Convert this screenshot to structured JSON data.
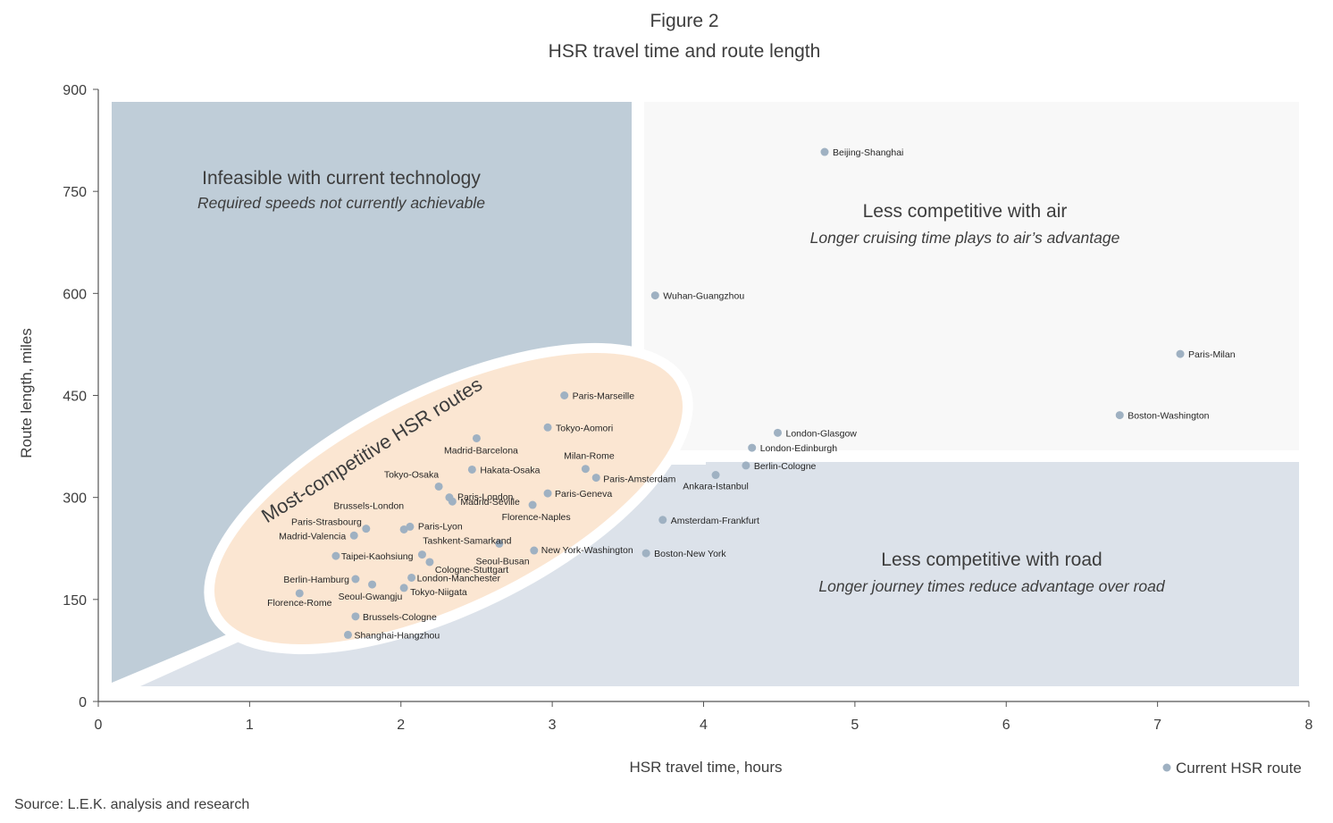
{
  "figure": {
    "title_line1": "Figure 2",
    "title_line2": "HSR travel time and route length",
    "source": "Source: L.E.K. analysis and research"
  },
  "zones": [
    {
      "id": "infeasible",
      "title": "Infeasible with current technology",
      "subtitle": "Required speeds not currently achievable"
    },
    {
      "id": "air",
      "title": "Less competitive with air",
      "subtitle": "Longer cruising time plays to air’s advantage"
    },
    {
      "id": "road",
      "title": "Less competitive with road",
      "subtitle": "Longer journey times reduce advantage over road"
    },
    {
      "id": "competitive",
      "title": "Most-competitive HSR routes",
      "subtitle": ""
    }
  ],
  "colors": {
    "infeasible": "#bfcdd8",
    "air": "#f8f8f8",
    "road": "#dce2ea",
    "competitive_fill": "#fbe6d2",
    "point": "#9fb1c2",
    "axis": "#555555"
  },
  "chart_data": {
    "type": "scatter",
    "title": "HSR travel time and route length",
    "xlabel": "HSR travel time, hours",
    "ylabel": "Route length, miles",
    "xlim": [
      0,
      8
    ],
    "ylim": [
      0,
      900
    ],
    "xticks": [
      0,
      1,
      2,
      3,
      4,
      5,
      6,
      7,
      8
    ],
    "yticks": [
      0,
      150,
      300,
      450,
      600,
      750,
      900
    ],
    "grid": false,
    "legend": {
      "position": "bottom-right",
      "entries": [
        "Current HSR route"
      ]
    },
    "series": [
      {
        "name": "Current HSR route",
        "points": [
          {
            "label": "Beijing-Shanghai",
            "x": 4.8,
            "y": 808
          },
          {
            "label": "Wuhan-Guangzhou",
            "x": 3.68,
            "y": 597
          },
          {
            "label": "Paris-Milan",
            "x": 7.15,
            "y": 511
          },
          {
            "label": "Boston-Washington",
            "x": 6.75,
            "y": 421
          },
          {
            "label": "Paris-Marseille",
            "x": 3.08,
            "y": 450
          },
          {
            "label": "Tokyo-Aomori",
            "x": 2.97,
            "y": 403
          },
          {
            "label": "Madrid-Barcelona",
            "x": 2.5,
            "y": 387
          },
          {
            "label": "London-Glasgow",
            "x": 4.49,
            "y": 395
          },
          {
            "label": "London-Edinburgh",
            "x": 4.32,
            "y": 373
          },
          {
            "label": "Berlin-Cologne",
            "x": 4.28,
            "y": 347
          },
          {
            "label": "Milan-Rome",
            "x": 3.22,
            "y": 342
          },
          {
            "label": "Hakata-Osaka",
            "x": 2.47,
            "y": 341
          },
          {
            "label": "Paris-Amsterdam",
            "x": 3.29,
            "y": 329
          },
          {
            "label": "Ankara-Istanbul",
            "x": 4.08,
            "y": 333
          },
          {
            "label": "Tokyo-Osaka",
            "x": 2.25,
            "y": 316
          },
          {
            "label": "Paris-London",
            "x": 2.32,
            "y": 300
          },
          {
            "label": "Madrid-Seville",
            "x": 2.34,
            "y": 294
          },
          {
            "label": "Paris-Geneva",
            "x": 2.97,
            "y": 306
          },
          {
            "label": "Florence-Naples",
            "x": 2.87,
            "y": 289
          },
          {
            "label": "Brussels-London",
            "x": 2.02,
            "y": 253
          },
          {
            "label": "Paris-Lyon",
            "x": 2.06,
            "y": 257
          },
          {
            "label": "Amsterdam-Frankfurt",
            "x": 3.73,
            "y": 267
          },
          {
            "label": "Paris-Strasbourg",
            "x": 1.77,
            "y": 254
          },
          {
            "label": "Madrid-Valencia",
            "x": 1.69,
            "y": 244
          },
          {
            "label": "Tashkent-Samarkand",
            "x": 2.65,
            "y": 232
          },
          {
            "label": "New York-Washington",
            "x": 2.88,
            "y": 222
          },
          {
            "label": "Boston-New York",
            "x": 3.62,
            "y": 218
          },
          {
            "label": "Seoul-Busan",
            "x": 2.14,
            "y": 216
          },
          {
            "label": "Taipei-Kaohsiung",
            "x": 1.57,
            "y": 214
          },
          {
            "label": "Cologne-Stuttgart",
            "x": 2.19,
            "y": 205
          },
          {
            "label": "London-Manchester",
            "x": 2.07,
            "y": 182
          },
          {
            "label": "Berlin-Hamburg",
            "x": 1.7,
            "y": 180
          },
          {
            "label": "Seoul-Gwangju",
            "x": 1.81,
            "y": 172
          },
          {
            "label": "Tokyo-Niigata",
            "x": 2.02,
            "y": 167
          },
          {
            "label": "Florence-Rome",
            "x": 1.33,
            "y": 159
          },
          {
            "label": "Brussels-Cologne",
            "x": 1.7,
            "y": 125
          },
          {
            "label": "Shanghai-Hangzhou",
            "x": 1.65,
            "y": 98
          }
        ]
      }
    ]
  }
}
